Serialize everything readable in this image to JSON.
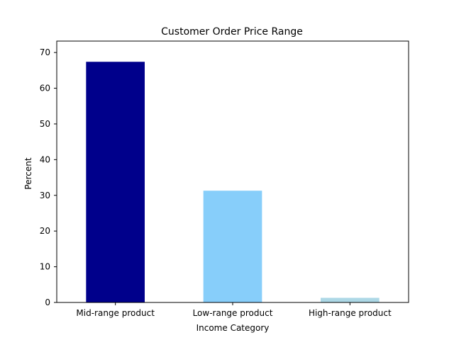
{
  "chart_data": {
    "type": "bar",
    "title": "Customer Order Price Range",
    "xlabel": "Income Category",
    "ylabel": "Percent",
    "categories": [
      "Mid-range product",
      "Low-range product",
      "High-range product"
    ],
    "values": [
      67.4,
      31.3,
      1.3
    ],
    "colors": [
      "#00008b",
      "#87cefa",
      "#add8e6"
    ],
    "ylim": [
      0,
      70
    ],
    "yticks": [
      0,
      10,
      20,
      30,
      40,
      50,
      60,
      70
    ],
    "grid": false,
    "legend": "none"
  }
}
